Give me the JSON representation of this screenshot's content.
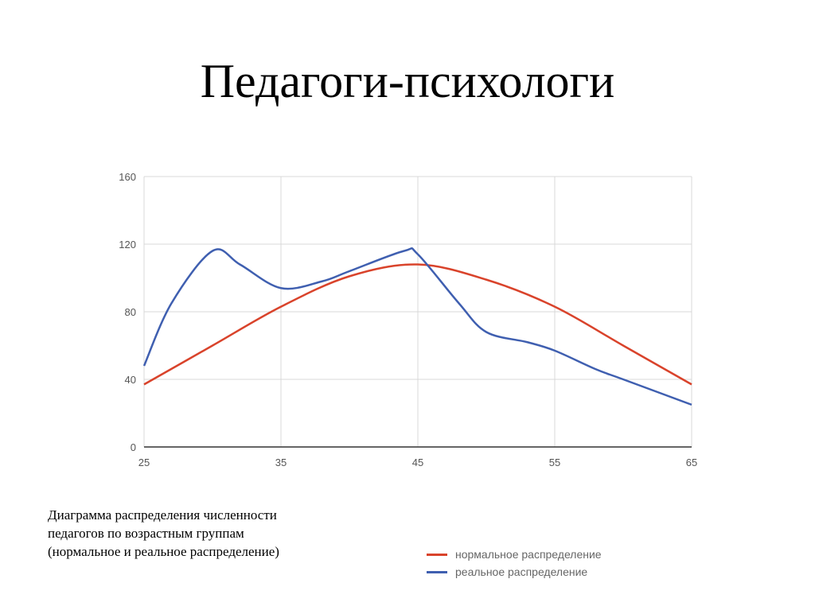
{
  "slide": {
    "title": "Педагоги-психологи",
    "caption_lines": [
      "Диаграмма распределения численности",
      "педагогов по возрастным группам",
      "(нормальное и реальное распределение)"
    ]
  },
  "colors": {
    "normal": "#d9432b",
    "real": "#3f5fb0",
    "grid": "#d9d9d9",
    "axis": "#333333"
  },
  "chart_data": {
    "type": "line",
    "title": "",
    "xlabel": "",
    "ylabel": "",
    "xlim": [
      25,
      65
    ],
    "ylim": [
      0,
      160
    ],
    "x_ticks": [
      25,
      35,
      45,
      55,
      65
    ],
    "y_ticks": [
      0,
      40,
      80,
      120,
      160
    ],
    "grid": true,
    "smooth": true,
    "legend_position": "bottom-right",
    "series": [
      {
        "name": "нормальное распределение",
        "color": "#d9432b",
        "x": [
          25,
          30,
          35,
          40,
          45,
          50,
          55,
          60,
          65
        ],
        "values": [
          37,
          60,
          83,
          101,
          108,
          99,
          83,
          60,
          37
        ]
      },
      {
        "name": "реальное распределение",
        "color": "#3f5fb0",
        "x": [
          25,
          27,
          30,
          32,
          35,
          38,
          40,
          44,
          45,
          48,
          50,
          53,
          55,
          58,
          60,
          65
        ],
        "values": [
          48,
          85,
          116,
          108,
          94,
          98,
          104,
          116,
          114,
          85,
          68,
          62,
          57,
          46,
          40,
          25
        ]
      }
    ]
  },
  "legend": {
    "items": [
      {
        "label": "нормальное распределение",
        "color": "#d9432b"
      },
      {
        "label": "реальное распределение",
        "color": "#3f5fb0"
      }
    ]
  }
}
